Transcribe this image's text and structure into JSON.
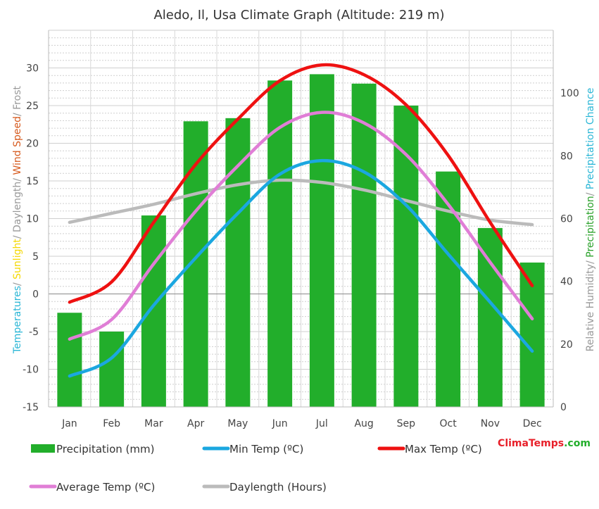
{
  "chart_data": {
    "type": "bar",
    "title": "Aledo, Il, Usa Climate Graph (Altitude: 219 m)",
    "left_axis_label_parts": [
      {
        "text": "Temperatures",
        "color": "#29b6d6"
      },
      {
        "text": "/ ",
        "color": "#999999"
      },
      {
        "text": "Sunlight",
        "color": "#f5d800"
      },
      {
        "text": "/ Daylength/ ",
        "color": "#999999"
      },
      {
        "text": "Wind Speed",
        "color": "#d65a1e"
      },
      {
        "text": "/ Frost",
        "color": "#999999"
      }
    ],
    "right_axis_label_parts": [
      {
        "text": "Relative Humidity/ ",
        "color": "#999999"
      },
      {
        "text": "Precipitation",
        "color": "#2aa12a"
      },
      {
        "text": "/ ",
        "color": "#999999"
      },
      {
        "text": "Precipitation Chance",
        "color": "#29b6d6"
      }
    ],
    "categories": [
      "Jan",
      "Feb",
      "Mar",
      "Apr",
      "May",
      "Jun",
      "Jul",
      "Aug",
      "Sep",
      "Oct",
      "Nov",
      "Dec"
    ],
    "left_ylim": [
      -15,
      35
    ],
    "left_ticks": [
      -15,
      -10,
      -5,
      0,
      5,
      10,
      15,
      20,
      25,
      30
    ],
    "right_ylim": [
      0,
      120
    ],
    "right_ticks": [
      0,
      20,
      40,
      60,
      80,
      100
    ],
    "grid": true,
    "series": [
      {
        "name": "Precipitation (mm)",
        "kind": "bar",
        "axis": "right",
        "color": "#22ae2b",
        "values": [
          30,
          24,
          61,
          91,
          92,
          104,
          106,
          103,
          96,
          75,
          57,
          46
        ]
      },
      {
        "name": "Min Temp (ºC)",
        "kind": "line",
        "axis": "left",
        "color": "#1ba7e0",
        "values": [
          -10.9,
          -8.5,
          -1.5,
          4.8,
          10.7,
          15.9,
          17.7,
          16.2,
          11.8,
          5.3,
          -1.1,
          -7.6
        ]
      },
      {
        "name": "Max Temp (ºC)",
        "kind": "line",
        "axis": "left",
        "color": "#ee1111",
        "values": [
          -1.1,
          1.6,
          9.5,
          17.2,
          23.2,
          28.3,
          30.4,
          29.1,
          25.1,
          18.4,
          9.5,
          1.1
        ]
      },
      {
        "name": "Average Temp (ºC)",
        "kind": "line",
        "axis": "left",
        "color": "#e07ed6",
        "values": [
          -6.0,
          -3.4,
          4.0,
          11.0,
          17.0,
          22.1,
          24.1,
          22.7,
          18.5,
          11.9,
          4.2,
          -3.3
        ]
      },
      {
        "name": "Daylength (Hours)",
        "kind": "line",
        "axis": "left",
        "color": "#bbbbbb",
        "values": [
          9.5,
          10.7,
          11.9,
          13.3,
          14.5,
          15.1,
          14.8,
          13.8,
          12.4,
          11.0,
          9.8,
          9.2
        ]
      }
    ],
    "legend_placement": "bottom",
    "legend": [
      {
        "label": "Precipitation (mm)",
        "type": "bar",
        "color": "#22ae2b"
      },
      {
        "label": "Min Temp (ºC)",
        "type": "line",
        "color": "#1ba7e0"
      },
      {
        "label": "Max Temp (ºC)",
        "type": "line",
        "color": "#ee1111"
      },
      {
        "label": "Average Temp (ºC)",
        "type": "line",
        "color": "#e07ed6"
      },
      {
        "label": "Daylength (Hours)",
        "type": "line",
        "color": "#bbbbbb"
      }
    ]
  },
  "branding": {
    "part1": "Clima",
    "part2": "Temps",
    "part3": ".com",
    "color1": "#e8202a",
    "color2": "#e8202a",
    "color3": "#22ae2b"
  }
}
